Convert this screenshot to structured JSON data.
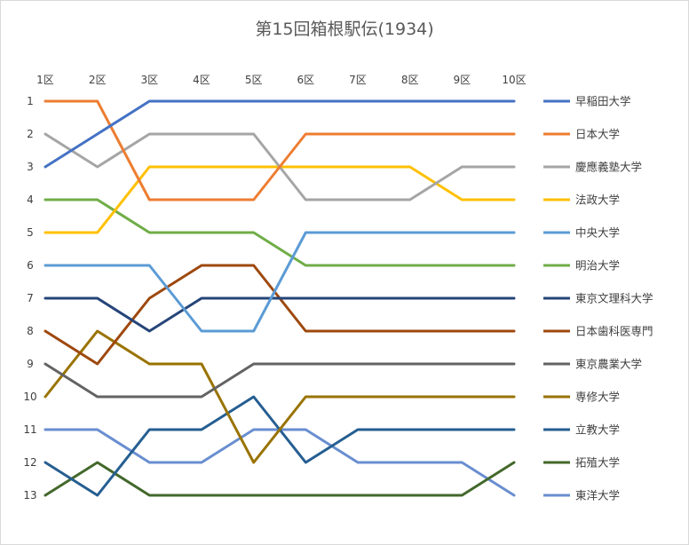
{
  "chart_data": {
    "type": "line",
    "title": "第15回箱根駅伝(1934)",
    "xlabel": "",
    "ylabel": "",
    "categories": [
      "1区",
      "2区",
      "3区",
      "4区",
      "5区",
      "6区",
      "7区",
      "8区",
      "9区",
      "10区"
    ],
    "y_ticks": [
      "1",
      "2",
      "3",
      "4",
      "5",
      "6",
      "7",
      "8",
      "9",
      "10",
      "11",
      "12",
      "13"
    ],
    "ylim": [
      1,
      13
    ],
    "y_inverted": true,
    "grid": false,
    "legend_position": "right",
    "series": [
      {
        "name": "早稲田大学",
        "color": "#4472c4",
        "values": [
          3,
          2,
          1,
          1,
          1,
          1,
          1,
          1,
          1,
          1
        ]
      },
      {
        "name": "日本大学",
        "color": "#ed7d31",
        "values": [
          1,
          1,
          4,
          4,
          4,
          2,
          2,
          2,
          2,
          2
        ]
      },
      {
        "name": "慶應義塾大学",
        "color": "#a5a5a5",
        "values": [
          2,
          3,
          2,
          2,
          2,
          4,
          4,
          4,
          3,
          3
        ]
      },
      {
        "name": "法政大学",
        "color": "#ffc000",
        "values": [
          5,
          5,
          3,
          3,
          3,
          3,
          3,
          3,
          4,
          4
        ]
      },
      {
        "name": "中央大学",
        "color": "#5b9bd5",
        "values": [
          6,
          6,
          6,
          8,
          8,
          5,
          5,
          5,
          5,
          5
        ]
      },
      {
        "name": "明治大学",
        "color": "#70ad47",
        "values": [
          4,
          4,
          5,
          5,
          5,
          6,
          6,
          6,
          6,
          6
        ]
      },
      {
        "name": "東京文理科大学",
        "color": "#264478",
        "values": [
          7,
          7,
          8,
          7,
          7,
          7,
          7,
          7,
          7,
          7
        ]
      },
      {
        "name": "日本歯科医専門",
        "color": "#9e480e",
        "values": [
          8,
          9,
          7,
          6,
          6,
          8,
          8,
          8,
          8,
          8
        ]
      },
      {
        "name": "東京農業大学",
        "color": "#636363",
        "values": [
          9,
          10,
          10,
          10,
          9,
          9,
          9,
          9,
          9,
          9
        ]
      },
      {
        "name": "専修大学",
        "color": "#997300",
        "values": [
          10,
          8,
          9,
          9,
          12,
          10,
          10,
          10,
          10,
          10
        ]
      },
      {
        "name": "立教大学",
        "color": "#255e91",
        "values": [
          12,
          13,
          11,
          11,
          10,
          12,
          11,
          11,
          11,
          11
        ]
      },
      {
        "name": "拓殖大学",
        "color": "#43682b",
        "values": [
          13,
          12,
          13,
          13,
          13,
          13,
          13,
          13,
          13,
          12
        ]
      },
      {
        "name": "東洋大学",
        "color": "#698ed0",
        "values": [
          11,
          11,
          12,
          12,
          11,
          11,
          12,
          12,
          12,
          13
        ]
      }
    ]
  }
}
